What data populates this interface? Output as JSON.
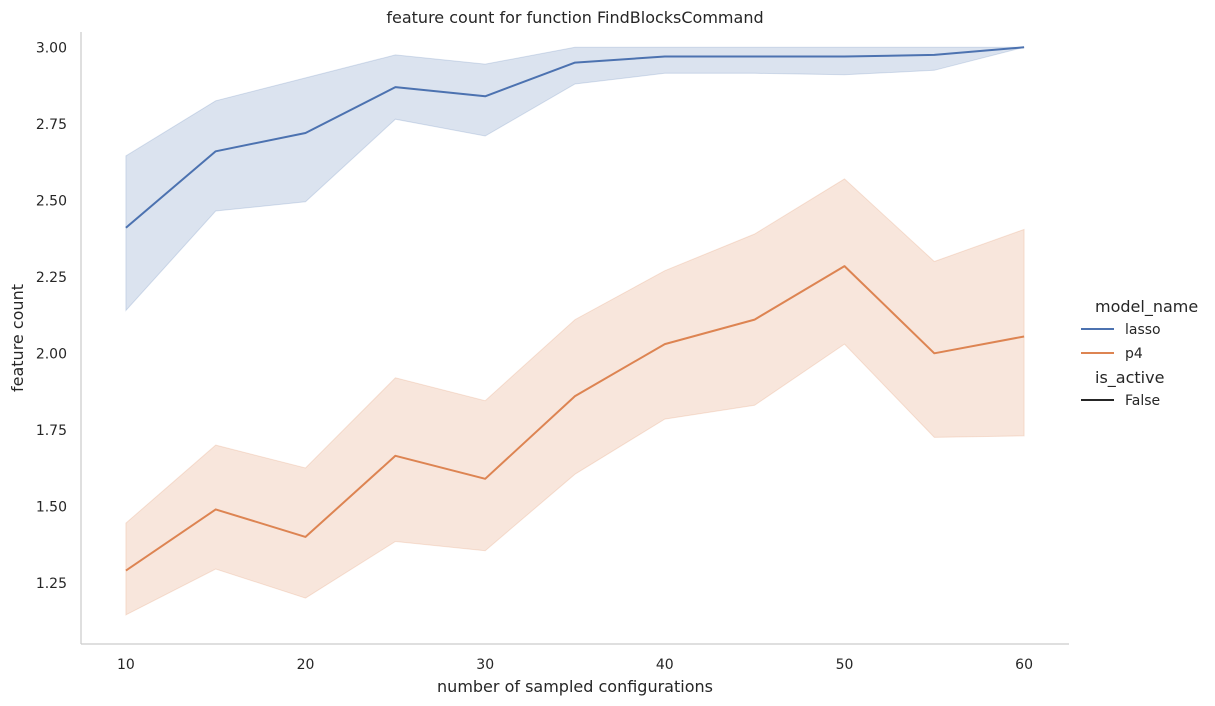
{
  "chart_data": {
    "type": "line",
    "title": "feature count for function FindBlocksCommand",
    "xlabel": "number of sampled configurations",
    "ylabel": "feature count",
    "x": [
      10,
      15,
      20,
      25,
      30,
      35,
      40,
      45,
      50,
      55,
      60
    ],
    "xticks": [
      10,
      20,
      30,
      40,
      50,
      60
    ],
    "xlim": [
      7.5,
      62.5
    ],
    "yticks": [
      1.25,
      1.5,
      1.75,
      2.0,
      2.25,
      2.5,
      2.75,
      3.0
    ],
    "ytick_labels": [
      "1.25",
      "1.50",
      "1.75",
      "2.00",
      "2.25",
      "2.50",
      "2.75",
      "3.00"
    ],
    "ylim": [
      1.05,
      3.05
    ],
    "grid": false,
    "legend_position": "right",
    "legend": {
      "hue_title": "model_name",
      "style_title": "is_active",
      "style_entries": [
        {
          "label": "False",
          "color": "#262626"
        }
      ]
    },
    "series": [
      {
        "name": "lasso",
        "color": "#4c72b0",
        "values": [
          2.41,
          2.66,
          2.72,
          2.87,
          2.84,
          2.95,
          2.97,
          2.97,
          2.97,
          2.975,
          3.0
        ],
        "ci_low": [
          2.14,
          2.465,
          2.495,
          2.765,
          2.71,
          2.88,
          2.915,
          2.915,
          2.91,
          2.925,
          3.0
        ],
        "ci_high": [
          2.645,
          2.825,
          2.9,
          2.975,
          2.945,
          3.0,
          3.0,
          3.0,
          3.0,
          3.0,
          3.0
        ]
      },
      {
        "name": "p4",
        "color": "#dd8452",
        "values": [
          1.29,
          1.49,
          1.4,
          1.665,
          1.59,
          1.86,
          2.03,
          2.11,
          2.285,
          2.0,
          2.055
        ],
        "ci_low": [
          1.145,
          1.295,
          1.2,
          1.385,
          1.355,
          1.605,
          1.785,
          1.83,
          2.03,
          1.725,
          1.73
        ],
        "ci_high": [
          1.445,
          1.7,
          1.625,
          1.92,
          1.845,
          2.11,
          2.27,
          2.39,
          2.57,
          2.3,
          2.405
        ]
      }
    ]
  }
}
